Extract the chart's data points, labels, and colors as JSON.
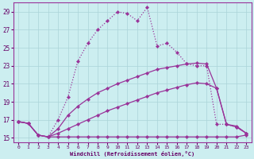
{
  "xlabel": "Windchill (Refroidissement éolien,°C)",
  "bg_color": "#cceef0",
  "grid_color": "#aad4d8",
  "line_color": "#993399",
  "xlim": [
    -0.5,
    23.5
  ],
  "ylim": [
    14.5,
    30.0
  ],
  "x_ticks": [
    0,
    1,
    2,
    3,
    4,
    5,
    6,
    7,
    8,
    9,
    10,
    11,
    12,
    13,
    14,
    15,
    16,
    17,
    18,
    19,
    20,
    21,
    22,
    23
  ],
  "yticks": [
    15,
    17,
    19,
    21,
    23,
    25,
    27,
    29
  ],
  "series": [
    {
      "x": [
        0,
        1,
        2,
        3,
        4,
        5,
        6,
        7,
        8,
        9,
        10,
        11,
        12,
        13,
        14,
        15,
        16,
        17,
        18,
        19,
        20,
        21,
        22,
        23
      ],
      "y": [
        16.8,
        16.6,
        15.3,
        15.1,
        15.1,
        15.1,
        15.1,
        15.1,
        15.1,
        15.1,
        15.1,
        15.1,
        15.1,
        15.1,
        15.1,
        15.1,
        15.1,
        15.1,
        15.1,
        15.1,
        15.1,
        15.1,
        15.1,
        15.3
      ]
    },
    {
      "x": [
        0,
        1,
        2,
        3,
        4,
        5,
        6,
        7,
        8,
        9,
        10,
        11,
        12,
        13,
        14,
        15,
        16,
        17,
        18,
        19,
        20,
        21,
        22,
        23
      ],
      "y": [
        16.8,
        16.6,
        15.3,
        15.1,
        15.5,
        16.0,
        16.5,
        17.0,
        17.5,
        18.0,
        18.4,
        18.8,
        19.2,
        19.6,
        20.0,
        20.3,
        20.6,
        20.9,
        21.1,
        21.0,
        20.5,
        16.5,
        16.3,
        15.5
      ]
    },
    {
      "x": [
        0,
        1,
        2,
        3,
        4,
        5,
        6,
        7,
        8,
        9,
        10,
        11,
        12,
        13,
        14,
        15,
        16,
        17,
        18,
        19,
        20,
        21,
        22,
        23
      ],
      "y": [
        16.8,
        16.6,
        15.3,
        15.1,
        16.0,
        17.5,
        18.5,
        19.3,
        20.0,
        20.5,
        21.0,
        21.4,
        21.8,
        22.2,
        22.6,
        22.8,
        23.0,
        23.2,
        23.3,
        23.2,
        20.5,
        16.5,
        16.2,
        15.5
      ]
    },
    {
      "x": [
        0,
        1,
        2,
        3,
        4,
        5,
        6,
        7,
        8,
        9,
        10,
        11,
        12,
        13,
        14,
        15,
        16,
        17,
        18,
        19,
        20,
        21,
        22,
        23
      ],
      "y": [
        16.8,
        16.6,
        15.3,
        15.1,
        17.0,
        19.5,
        23.5,
        25.5,
        27.0,
        28.0,
        29.0,
        28.8,
        28.0,
        29.5,
        25.2,
        25.5,
        24.5,
        23.2,
        23.0,
        23.0,
        16.5,
        16.5,
        16.2,
        15.5
      ]
    }
  ]
}
